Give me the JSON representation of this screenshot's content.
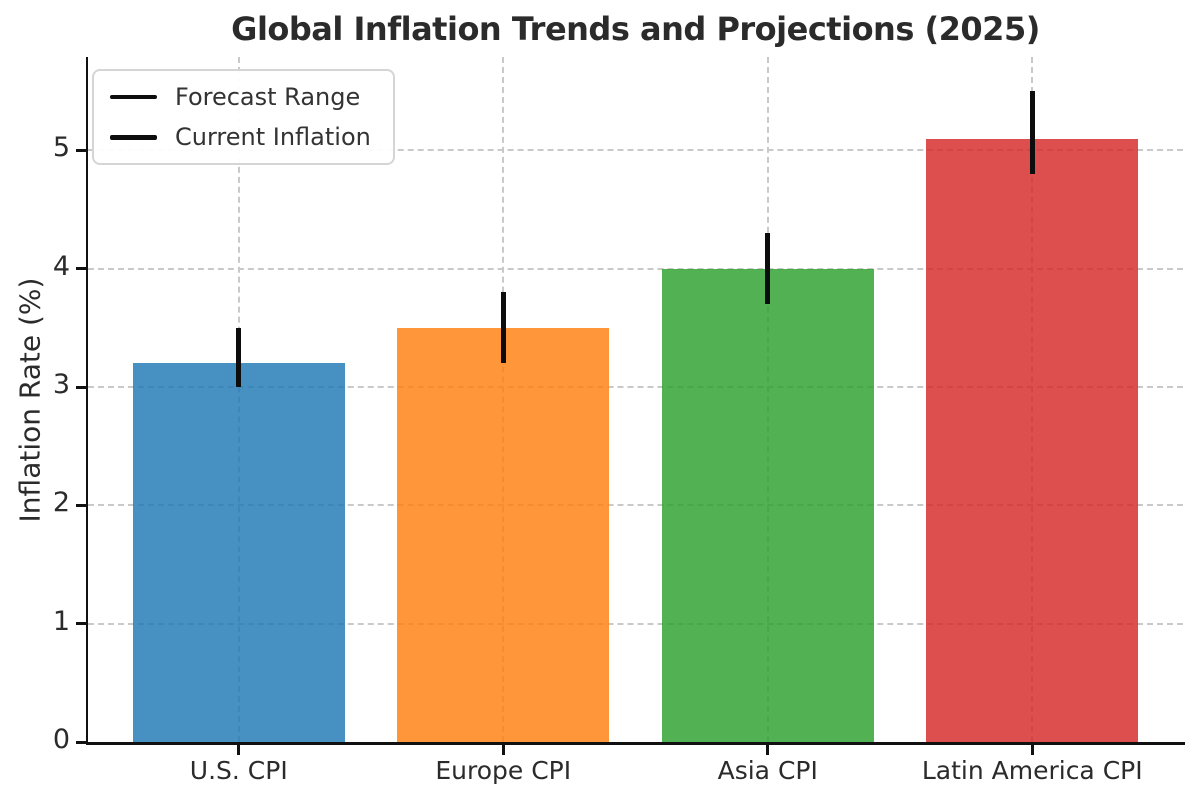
{
  "chart_data": {
    "type": "bar",
    "title": "Global Inflation Trends and Projections (2025)",
    "xlabel": "",
    "ylabel": "Inflation Rate (%)",
    "categories": [
      "U.S. CPI",
      "Europe CPI",
      "Asia CPI",
      "Latin America CPI"
    ],
    "values": [
      3.2,
      3.5,
      4.0,
      5.1
    ],
    "forecast_ranges": [
      [
        3.0,
        3.5
      ],
      [
        3.2,
        3.8
      ],
      [
        3.7,
        4.3
      ],
      [
        4.8,
        5.5
      ]
    ],
    "legend": [
      "Forecast Range",
      "Current Inflation"
    ],
    "legend_position": "upper left",
    "yticks": [
      0,
      1,
      2,
      3,
      4,
      5
    ],
    "ylim": [
      0,
      5.79
    ],
    "grid": true,
    "grid_style": "dashed",
    "bar_colors": [
      "#1f77b4",
      "#ff7f0e",
      "#2ca02c",
      "#d62728"
    ],
    "bar_alpha": 0.82,
    "errorbar_color": "#0d0d0d"
  }
}
